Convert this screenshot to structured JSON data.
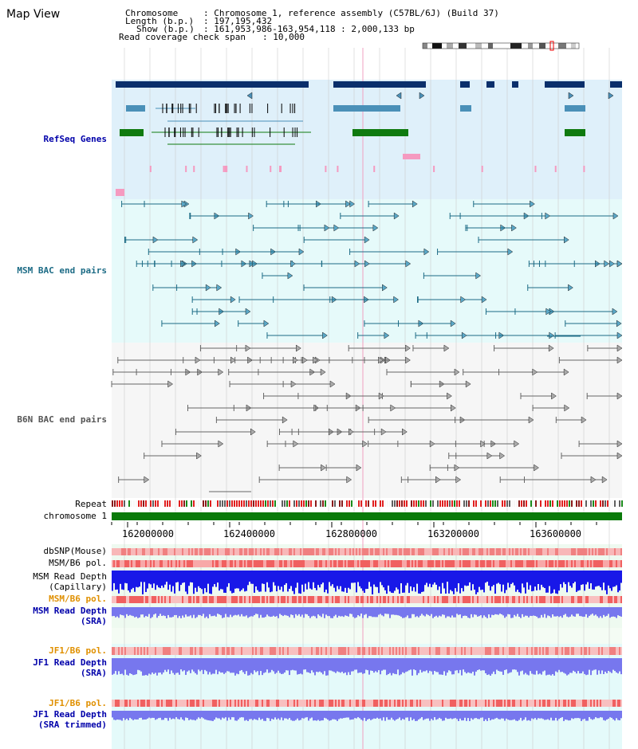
{
  "header": {
    "title": "Map View",
    "chromosome_key": "Chromosome",
    "chromosome_value": ": Chromosome 1, reference assembly (C57BL/6J) (Build 37)",
    "length_key": "Length (b.p.)",
    "length_value": ": 197,195,432",
    "show_key": "Show (b.p.)",
    "show_value": ": 161,953,986-163,954,118 : 2,000,133 bp",
    "coverage_key": "Read coverage check span",
    "coverage_value": ": 10,000"
  },
  "tracks": {
    "refseq": "RefSeq Genes",
    "msm_bac": "MSM BAC end pairs",
    "b6n_bac": "B6N BAC end pairs",
    "repeat": "Repeat",
    "chromosome": "chromosome 1",
    "dbsnp": "dbSNP(Mouse)",
    "msm_b6_pol": "MSM/B6 pol.",
    "msm_read_depth_cap_1": "MSM Read Depth",
    "msm_read_depth_cap_2": "(Capillary)",
    "msm_b6_pol_2": "MSM/B6 pol.",
    "msm_read_depth_sra_1": "MSM Read Depth",
    "msm_read_depth_sra_2": "(SRA)",
    "jf1_b6_pol": "JF1/B6 pol.",
    "jf1_read_depth_sra_1": "JF1 Read Depth",
    "jf1_read_depth_sra_2": "(SRA)",
    "jf1_b6_pol_2": "JF1/B6 pol.",
    "jf1_read_depth_trim_1": "JF1 Read Depth",
    "jf1_read_depth_trim_2": "(SRA trimmed)"
  },
  "axis": {
    "ticks": [
      "162000000",
      "162400000",
      "162800000",
      "163200000",
      "163600000"
    ]
  },
  "colors": {
    "refseq_dark": "#0a2f6b",
    "refseq_mid": "#4a90b8",
    "refseq_green": "#0f7a0f",
    "msm_line": "#1c6b85",
    "b6n_line": "#666666",
    "chrom_green": "#0a7a0a",
    "snp_pink": "#f4a0a0",
    "depth_blue": "#1010e0",
    "sra_blue": "#7777ee",
    "pol_red": "#f04040"
  }
}
